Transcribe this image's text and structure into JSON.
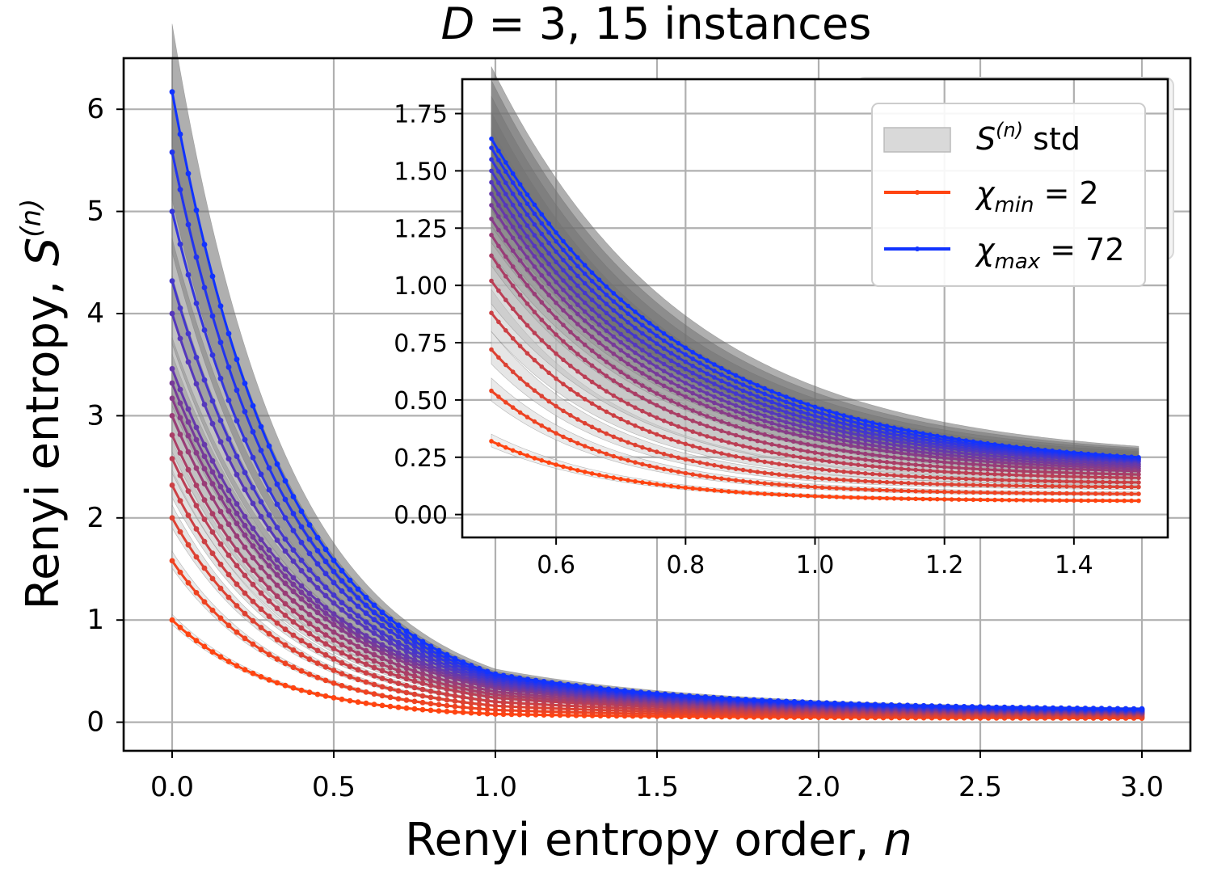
{
  "chart_data": {
    "type": "line",
    "title_prefix": "D",
    "title_rest": " = 3, 15 instances",
    "xlabel_prefix": "Renyi entropy order, ",
    "xlabel_var": "n",
    "ylabel_prefix": "Renyi entropy, ",
    "ylabel_var": "S",
    "ylabel_sup": "(n)",
    "xlim": [
      -0.15,
      3.15
    ],
    "ylim": [
      -0.28,
      6.5
    ],
    "xticks": [
      "0.0",
      "0.5",
      "1.0",
      "1.5",
      "2.0",
      "2.5",
      "3.0"
    ],
    "xtick_values": [
      0,
      0.5,
      1,
      1.5,
      2,
      2.5,
      3
    ],
    "yticks": [
      "0",
      "1",
      "2",
      "3",
      "4",
      "5",
      "6"
    ],
    "ytick_values": [
      0,
      1,
      2,
      3,
      4,
      5,
      6
    ],
    "grid": true,
    "n_range": [
      0,
      3
    ],
    "series_note": "15 chi values from chi_min = 2 (red) to chi_max = 72 (blue)",
    "S0_values": [
      1.0,
      1.58,
      2.0,
      2.32,
      2.58,
      2.81,
      3.0,
      3.17,
      3.32,
      3.46,
      4.0,
      4.32,
      5.0,
      5.58,
      6.17
    ],
    "S1_values": [
      0.08,
      0.12,
      0.16,
      0.2,
      0.24,
      0.27,
      0.3,
      0.33,
      0.35,
      0.37,
      0.39,
      0.41,
      0.43,
      0.45,
      0.47
    ],
    "S3_values": [
      0.04,
      0.05,
      0.06,
      0.07,
      0.08,
      0.085,
      0.09,
      0.095,
      0.1,
      0.105,
      0.11,
      0.115,
      0.12,
      0.125,
      0.13
    ],
    "color_min": "#ff4411",
    "color_max": "#1133ff",
    "std_color": "#888888",
    "legend": {
      "std_label": " std",
      "std_var": "S",
      "std_sup": "(n)",
      "min_var": "χ",
      "min_sub": "min",
      "min_rest": " = 2",
      "max_var": "χ",
      "max_sub": "max",
      "max_rest": " = 72"
    },
    "inset": {
      "xlim": [
        0.455,
        1.545
      ],
      "ylim": [
        -0.1,
        1.9
      ],
      "xticks": [
        "0.6",
        "0.8",
        "1.0",
        "1.2",
        "1.4"
      ],
      "xtick_values": [
        0.6,
        0.8,
        1.0,
        1.2,
        1.4
      ],
      "yticks": [
        "0.00",
        "0.25",
        "0.50",
        "0.75",
        "1.00",
        "1.25",
        "1.50",
        "1.75"
      ],
      "ytick_values": [
        0,
        0.25,
        0.5,
        0.75,
        1.0,
        1.25,
        1.5,
        1.75
      ],
      "n_range": [
        0.5,
        1.5
      ],
      "S05_values": [
        0.32,
        0.54,
        0.72,
        0.88,
        1.02,
        1.13,
        1.22,
        1.29,
        1.35,
        1.4,
        1.45,
        1.5,
        1.55,
        1.6,
        1.64
      ],
      "S15_values": [
        0.06,
        0.09,
        0.12,
        0.14,
        0.16,
        0.175,
        0.19,
        0.2,
        0.21,
        0.22,
        0.23,
        0.235,
        0.24,
        0.245,
        0.25
      ]
    }
  }
}
